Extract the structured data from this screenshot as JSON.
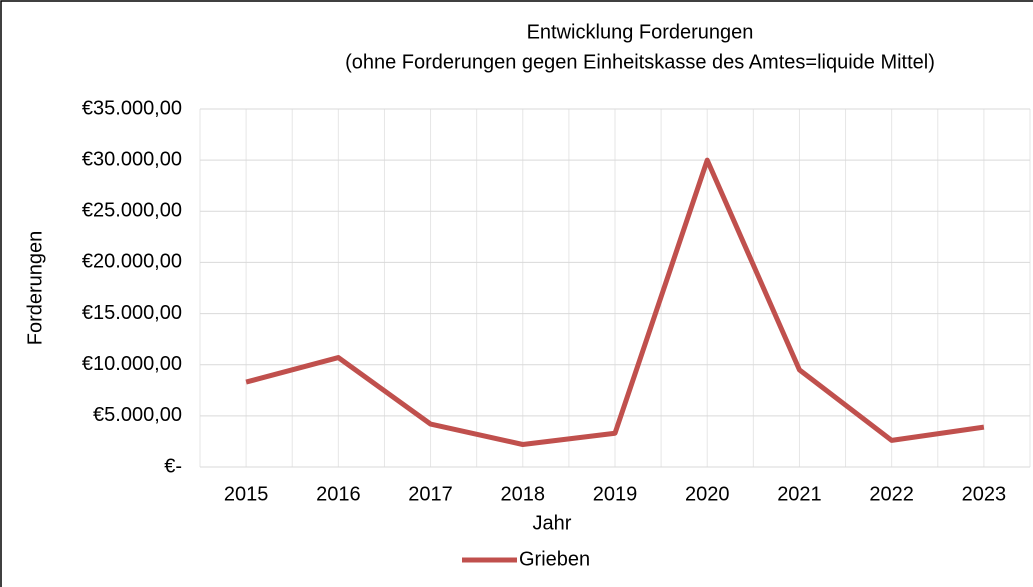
{
  "chart_data": {
    "type": "line",
    "title": "Entwicklung Forderungen",
    "subtitle": "(ohne Forderungen gegen Einheitskasse des Amtes=liquide Mittel)",
    "x_label": "Jahr",
    "y_label": "Forderungen",
    "categories": [
      "2015",
      "2016",
      "2017",
      "2018",
      "2019",
      "2020",
      "2021",
      "2022",
      "2023"
    ],
    "series": [
      {
        "name": "Grieben",
        "color": "#c0504d",
        "values": [
          8300,
          10700,
          4200,
          2200,
          3300,
          30000,
          9500,
          2600,
          3900
        ]
      }
    ],
    "ylim": [
      0,
      35000
    ],
    "yticks": [
      {
        "value": 0,
        "label": "€-"
      },
      {
        "value": 5000,
        "label": "€5.000,00"
      },
      {
        "value": 10000,
        "label": "€10.000,00"
      },
      {
        "value": 15000,
        "label": "€15.000,00"
      },
      {
        "value": 20000,
        "label": "€20.000,00"
      },
      {
        "value": 25000,
        "label": "€25.000,00"
      },
      {
        "value": 30000,
        "label": "€30.000,00"
      },
      {
        "value": 35000,
        "label": "€35.000,00"
      }
    ],
    "grid": true,
    "legend": "bottom"
  }
}
